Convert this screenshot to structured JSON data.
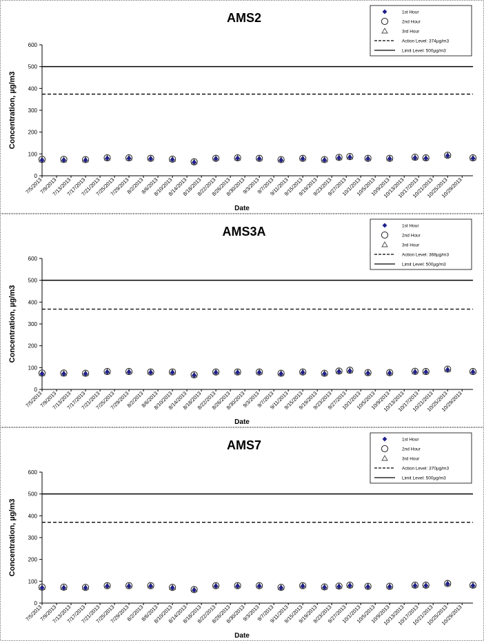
{
  "chart_data": [
    {
      "type": "scatter",
      "title": "AMS2",
      "xlabel": "Date",
      "ylabel": "Concentration,  µg/m3",
      "ylim": [
        0,
        600
      ],
      "yticks": [
        "0",
        "100",
        "200",
        "300",
        "400",
        "500",
        "600"
      ],
      "xlim": [
        "7/5/2013",
        "11/1/2013"
      ],
      "x_tick_labels": [
        "7/5/2013",
        "7/9/2013",
        "7/13/2013",
        "7/17/2013",
        "7/21/2013",
        "7/25/2013",
        "7/29/2013",
        "8/2/2013",
        "8/6/2013",
        "8/10/2013",
        "8/14/2013",
        "8/18/2013",
        "8/22/2013",
        "8/26/2013",
        "8/30/2013",
        "9/3/2013",
        "9/7/2013",
        "9/11/2013",
        "9/15/2013",
        "9/19/2013",
        "9/23/2013",
        "9/27/2013",
        "10/1/2013",
        "10/5/2013",
        "10/9/2013",
        "10/13/2013",
        "10/17/2013",
        "10/21/2013",
        "10/25/2013",
        "10/29/2013"
      ],
      "x": [
        "7/5/2013",
        "7/11/2013",
        "7/17/2013",
        "7/23/2013",
        "7/29/2013",
        "8/4/2013",
        "8/10/2013",
        "8/16/2013",
        "8/22/2013",
        "8/28/2013",
        "9/3/2013",
        "9/9/2013",
        "9/15/2013",
        "9/21/2013",
        "9/25/2013",
        "9/28/2013",
        "10/3/2013",
        "10/9/2013",
        "10/16/2013",
        "10/19/2013",
        "10/25/2013",
        "11/1/2013"
      ],
      "series": [
        {
          "name": "1st Hour",
          "marker": "diamond",
          "values": [
            72,
            72,
            72,
            80,
            80,
            78,
            74,
            62,
            78,
            80,
            78,
            72,
            78,
            72,
            82,
            85,
            78,
            78,
            82,
            80,
            92,
            80
          ]
        },
        {
          "name": "2nd Hour",
          "marker": "circle",
          "values": [
            75,
            75,
            74,
            82,
            82,
            80,
            76,
            64,
            80,
            82,
            80,
            74,
            80,
            74,
            84,
            88,
            80,
            80,
            85,
            82,
            94,
            82
          ]
        },
        {
          "name": "3rd Hour",
          "marker": "triangle",
          "values": [
            73,
            73,
            73,
            81,
            81,
            79,
            75,
            63,
            79,
            81,
            79,
            73,
            79,
            73,
            83,
            86,
            79,
            79,
            83,
            81,
            93,
            81
          ]
        }
      ],
      "reference_lines": [
        {
          "name": "Action Level: 374µg/m3",
          "value": 374,
          "style": "dashed"
        },
        {
          "name": "Limit Level: 500µg/m3",
          "value": 500,
          "style": "solid"
        }
      ],
      "legend_position": "top-right",
      "grid": false
    },
    {
      "type": "scatter",
      "title": "AMS3A",
      "xlabel": "Date",
      "ylabel": "Concentration,  µg/m3",
      "ylim": [
        0,
        600
      ],
      "yticks": [
        "0",
        "100",
        "200",
        "300",
        "400",
        "500",
        "600"
      ],
      "xlim": [
        "7/5/2013",
        "11/1/2013"
      ],
      "x_tick_labels": [
        "7/5/2013",
        "7/9/2013",
        "7/13/2013",
        "7/17/2013",
        "7/21/2013",
        "7/25/2013",
        "7/29/2013",
        "8/2/2013",
        "8/6/2013",
        "8/10/2013",
        "8/14/2013",
        "8/18/2013",
        "8/22/2013",
        "8/26/2013",
        "8/30/2013",
        "9/3/2013",
        "9/7/2013",
        "9/11/2013",
        "9/15/2013",
        "9/19/2013",
        "9/23/2013",
        "9/27/2013",
        "10/1/2013",
        "10/5/2013",
        "10/9/2013",
        "10/13/2013",
        "10/17/2013",
        "10/21/2013",
        "10/25/2013",
        "10/29/2013"
      ],
      "x": [
        "7/5/2013",
        "7/11/2013",
        "7/17/2013",
        "7/23/2013",
        "7/29/2013",
        "8/4/2013",
        "8/10/2013",
        "8/16/2013",
        "8/22/2013",
        "8/28/2013",
        "9/3/2013",
        "9/9/2013",
        "9/15/2013",
        "9/21/2013",
        "9/25/2013",
        "9/28/2013",
        "10/3/2013",
        "10/9/2013",
        "10/16/2013",
        "10/19/2013",
        "10/25/2013",
        "11/1/2013"
      ],
      "series": [
        {
          "name": "1st Hour",
          "marker": "diamond",
          "values": [
            72,
            72,
            72,
            80,
            80,
            78,
            78,
            65,
            78,
            78,
            78,
            72,
            78,
            72,
            82,
            85,
            75,
            75,
            80,
            80,
            90,
            80
          ]
        },
        {
          "name": "2nd Hour",
          "marker": "circle",
          "values": [
            75,
            75,
            74,
            82,
            82,
            80,
            80,
            67,
            80,
            80,
            80,
            74,
            80,
            74,
            84,
            88,
            77,
            77,
            83,
            82,
            93,
            82
          ]
        },
        {
          "name": "3rd Hour",
          "marker": "triangle",
          "values": [
            73,
            73,
            73,
            81,
            81,
            79,
            79,
            66,
            79,
            79,
            79,
            73,
            79,
            73,
            83,
            86,
            76,
            76,
            81,
            81,
            91,
            81
          ]
        }
      ],
      "reference_lines": [
        {
          "name": "Action Level: 368µg/m3",
          "value": 368,
          "style": "dashed"
        },
        {
          "name": "Limit Level: 500µg/m3",
          "value": 500,
          "style": "solid"
        }
      ],
      "legend_position": "top-right",
      "grid": false
    },
    {
      "type": "scatter",
      "title": "AMS7",
      "xlabel": "Date",
      "ylabel": "Concentration,  µg/m3",
      "ylim": [
        0,
        600
      ],
      "yticks": [
        "0",
        "100",
        "200",
        "300",
        "400",
        "500",
        "600"
      ],
      "xlim": [
        "7/5/2013",
        "11/1/2013"
      ],
      "x_tick_labels": [
        "7/5/2013",
        "7/9/2013",
        "7/13/2013",
        "7/17/2013",
        "7/21/2013",
        "7/25/2013",
        "7/29/2013",
        "8/2/2013",
        "8/6/2013",
        "8/10/2013",
        "8/14/2013",
        "8/18/2013",
        "8/22/2013",
        "8/26/2013",
        "8/30/2013",
        "9/3/2013",
        "9/7/2013",
        "9/11/2013",
        "9/15/2013",
        "9/19/2013",
        "9/23/2013",
        "9/27/2013",
        "10/1/2013",
        "10/5/2013",
        "10/9/2013",
        "10/13/2013",
        "10/17/2013",
        "10/21/2013",
        "10/25/2013",
        "10/29/2013"
      ],
      "x": [
        "7/5/2013",
        "7/11/2013",
        "7/17/2013",
        "7/23/2013",
        "7/29/2013",
        "8/4/2013",
        "8/10/2013",
        "8/16/2013",
        "8/22/2013",
        "8/28/2013",
        "9/3/2013",
        "9/9/2013",
        "9/15/2013",
        "9/21/2013",
        "9/25/2013",
        "9/28/2013",
        "10/3/2013",
        "10/9/2013",
        "10/16/2013",
        "10/19/2013",
        "10/25/2013",
        "11/1/2013"
      ],
      "series": [
        {
          "name": "1st Hour",
          "marker": "diamond",
          "values": [
            70,
            70,
            70,
            78,
            78,
            78,
            70,
            60,
            78,
            78,
            78,
            70,
            78,
            72,
            76,
            80,
            75,
            75,
            80,
            80,
            88,
            80
          ]
        },
        {
          "name": "2nd Hour",
          "marker": "circle",
          "values": [
            73,
            73,
            72,
            80,
            80,
            80,
            72,
            62,
            80,
            80,
            80,
            72,
            80,
            74,
            78,
            82,
            77,
            77,
            82,
            82,
            90,
            82
          ]
        },
        {
          "name": "3rd Hour",
          "marker": "triangle",
          "values": [
            71,
            71,
            71,
            79,
            79,
            79,
            71,
            61,
            79,
            79,
            79,
            71,
            79,
            73,
            77,
            81,
            76,
            76,
            81,
            81,
            89,
            81
          ]
        }
      ],
      "reference_lines": [
        {
          "name": "Action Level: 370µg/m3",
          "value": 370,
          "style": "dashed"
        },
        {
          "name": "Limit Level: 500µg/m3",
          "value": 500,
          "style": "solid"
        }
      ],
      "legend_position": "top-right",
      "grid": false
    }
  ]
}
